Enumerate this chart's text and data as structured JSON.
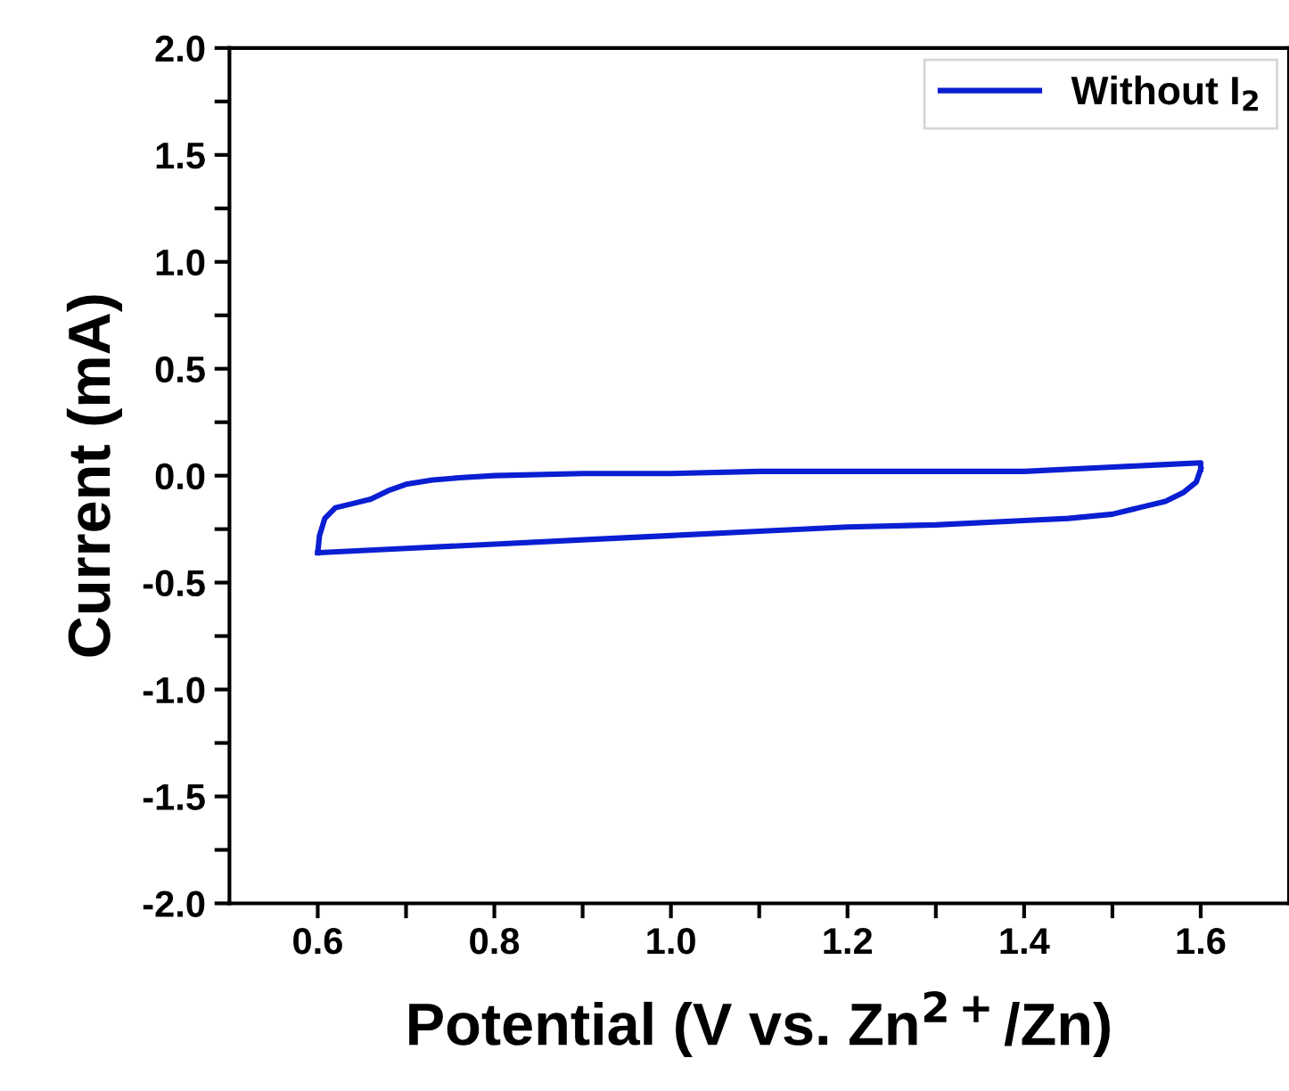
{
  "chart_data": {
    "type": "line",
    "xlabel": "Potential (V vs. Zn$^{2+}$/Zn)",
    "ylabel": "Current (mA)",
    "series": [
      {
        "name": "Without I$_{2}$",
        "color": "#0a1ed2",
        "x": [
          0.6,
          0.602,
          0.608,
          0.62,
          0.64,
          0.66,
          0.68,
          0.7,
          0.73,
          0.76,
          0.8,
          0.9,
          1.0,
          1.1,
          1.2,
          1.3,
          1.4,
          1.5,
          1.55,
          1.6,
          1.6,
          1.595,
          1.58,
          1.56,
          1.53,
          1.5,
          1.45,
          1.4,
          1.3,
          1.2,
          1.1,
          1.0,
          0.9,
          0.8,
          0.7,
          0.6
        ],
        "values": [
          -0.36,
          -0.28,
          -0.2,
          -0.15,
          -0.13,
          -0.11,
          -0.07,
          -0.04,
          -0.02,
          -0.01,
          0.0,
          0.01,
          0.01,
          0.02,
          0.02,
          0.02,
          0.02,
          0.04,
          0.05,
          0.06,
          0.03,
          -0.03,
          -0.08,
          -0.12,
          -0.15,
          -0.18,
          -0.2,
          -0.21,
          -0.23,
          -0.24,
          -0.26,
          -0.28,
          -0.3,
          -0.32,
          -0.34,
          -0.36
        ]
      }
    ],
    "xlim": [
      0.5,
      1.7
    ],
    "ylim": [
      -2.0,
      2.0
    ],
    "xticks": [
      {
        "value": 0.6,
        "label": "0.6"
      },
      {
        "value": 0.7,
        "label": null
      },
      {
        "value": 0.8,
        "label": "0.8"
      },
      {
        "value": 0.9,
        "label": null
      },
      {
        "value": 1.0,
        "label": "1.0"
      },
      {
        "value": 1.1,
        "label": null
      },
      {
        "value": 1.2,
        "label": "1.2"
      },
      {
        "value": 1.3,
        "label": null
      },
      {
        "value": 1.4,
        "label": "1.4"
      },
      {
        "value": 1.5,
        "label": null
      },
      {
        "value": 1.6,
        "label": "1.6"
      }
    ],
    "yticks": [
      {
        "value": -2.0,
        "label": "-2.0"
      },
      {
        "value": -1.75,
        "label": null
      },
      {
        "value": -1.5,
        "label": "-1.5"
      },
      {
        "value": -1.25,
        "label": null
      },
      {
        "value": -1.0,
        "label": "-1.0"
      },
      {
        "value": -0.75,
        "label": null
      },
      {
        "value": -0.5,
        "label": "-0.5"
      },
      {
        "value": -0.25,
        "label": null
      },
      {
        "value": 0.0,
        "label": "0.0"
      },
      {
        "value": 0.25,
        "label": null
      },
      {
        "value": 0.5,
        "label": "0.5"
      },
      {
        "value": 0.75,
        "label": null
      },
      {
        "value": 1.0,
        "label": "1.0"
      },
      {
        "value": 1.25,
        "label": null
      },
      {
        "value": 1.5,
        "label": "1.5"
      },
      {
        "value": 1.75,
        "label": null
      },
      {
        "value": 2.0,
        "label": "2.0"
      }
    ],
    "legend": "top right",
    "grid": false
  }
}
